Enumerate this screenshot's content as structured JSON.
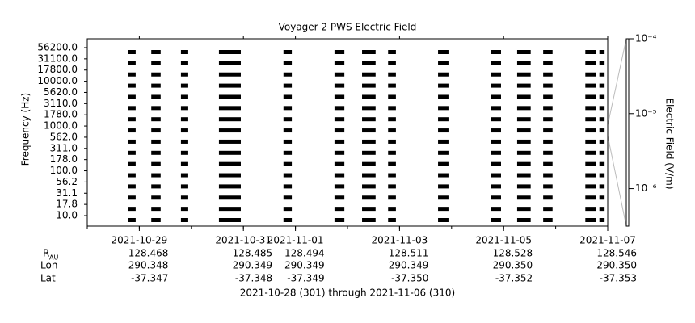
{
  "chart_data": {
    "type": "spectrogram",
    "title": "Voyager 2 PWS Electric Field",
    "y_label": "Frequency (Hz)",
    "categories": [
      "56200.0",
      "31100.0",
      "17800.0",
      "10000.0",
      "5620.0",
      "3110.0",
      "1780.0",
      "1000.0",
      "562.0",
      "311.0",
      "178.0",
      "100.0",
      "56.2",
      "31.1",
      "17.8",
      "10.0"
    ],
    "xlim": [
      301,
      311
    ],
    "xticks": [
      {
        "value": 302,
        "label": "2021-10-29"
      },
      {
        "value": 304,
        "label": "2021-10-31"
      },
      {
        "value": 305,
        "label": "2021-11-01"
      },
      {
        "value": 307,
        "label": "2021-11-03"
      },
      {
        "value": 309,
        "label": "2021-11-05"
      },
      {
        "value": 311,
        "label": "2021-11-07"
      }
    ],
    "bursts": [
      {
        "start": 301.78,
        "end": 301.93
      },
      {
        "start": 302.23,
        "end": 302.41
      },
      {
        "start": 302.8,
        "end": 302.94
      },
      {
        "start": 303.53,
        "end": 303.95
      },
      {
        "start": 304.77,
        "end": 304.93
      },
      {
        "start": 305.75,
        "end": 305.94
      },
      {
        "start": 306.28,
        "end": 306.54
      },
      {
        "start": 306.78,
        "end": 306.93
      },
      {
        "start": 307.74,
        "end": 307.94
      },
      {
        "start": 308.76,
        "end": 308.95
      },
      {
        "start": 309.26,
        "end": 309.52
      },
      {
        "start": 309.76,
        "end": 309.94
      },
      {
        "start": 310.57,
        "end": 310.78
      },
      {
        "start": 310.84,
        "end": 310.94
      }
    ],
    "color": "#000000",
    "colorbar": {
      "label": "Electric Field (V/m)",
      "log": true,
      "ylim": [
        3.16e-07,
        0.0001
      ],
      "yticks": [
        {
          "value": 0.0001,
          "label": "10⁻⁴"
        },
        {
          "value": 1e-05,
          "label": "10⁻⁵"
        },
        {
          "value": 1e-06,
          "label": "10⁻⁶"
        }
      ]
    },
    "ephemeris": {
      "row_labels": [
        {
          "main": "R",
          "sub": "AU"
        },
        {
          "main": "Lon"
        },
        {
          "main": "Lat"
        }
      ],
      "rows": [
        [
          "128.468",
          "128.485",
          "128.494",
          "128.511",
          "128.528",
          "128.546"
        ],
        [
          "290.348",
          "290.349",
          "290.349",
          "290.349",
          "290.350",
          "290.350"
        ],
        [
          "-37.347",
          "-37.348",
          "-37.349",
          "-37.350",
          "-37.352",
          "-37.353"
        ]
      ]
    },
    "footer": "2021-10-28 (301) through 2021-11-06 (310)"
  }
}
